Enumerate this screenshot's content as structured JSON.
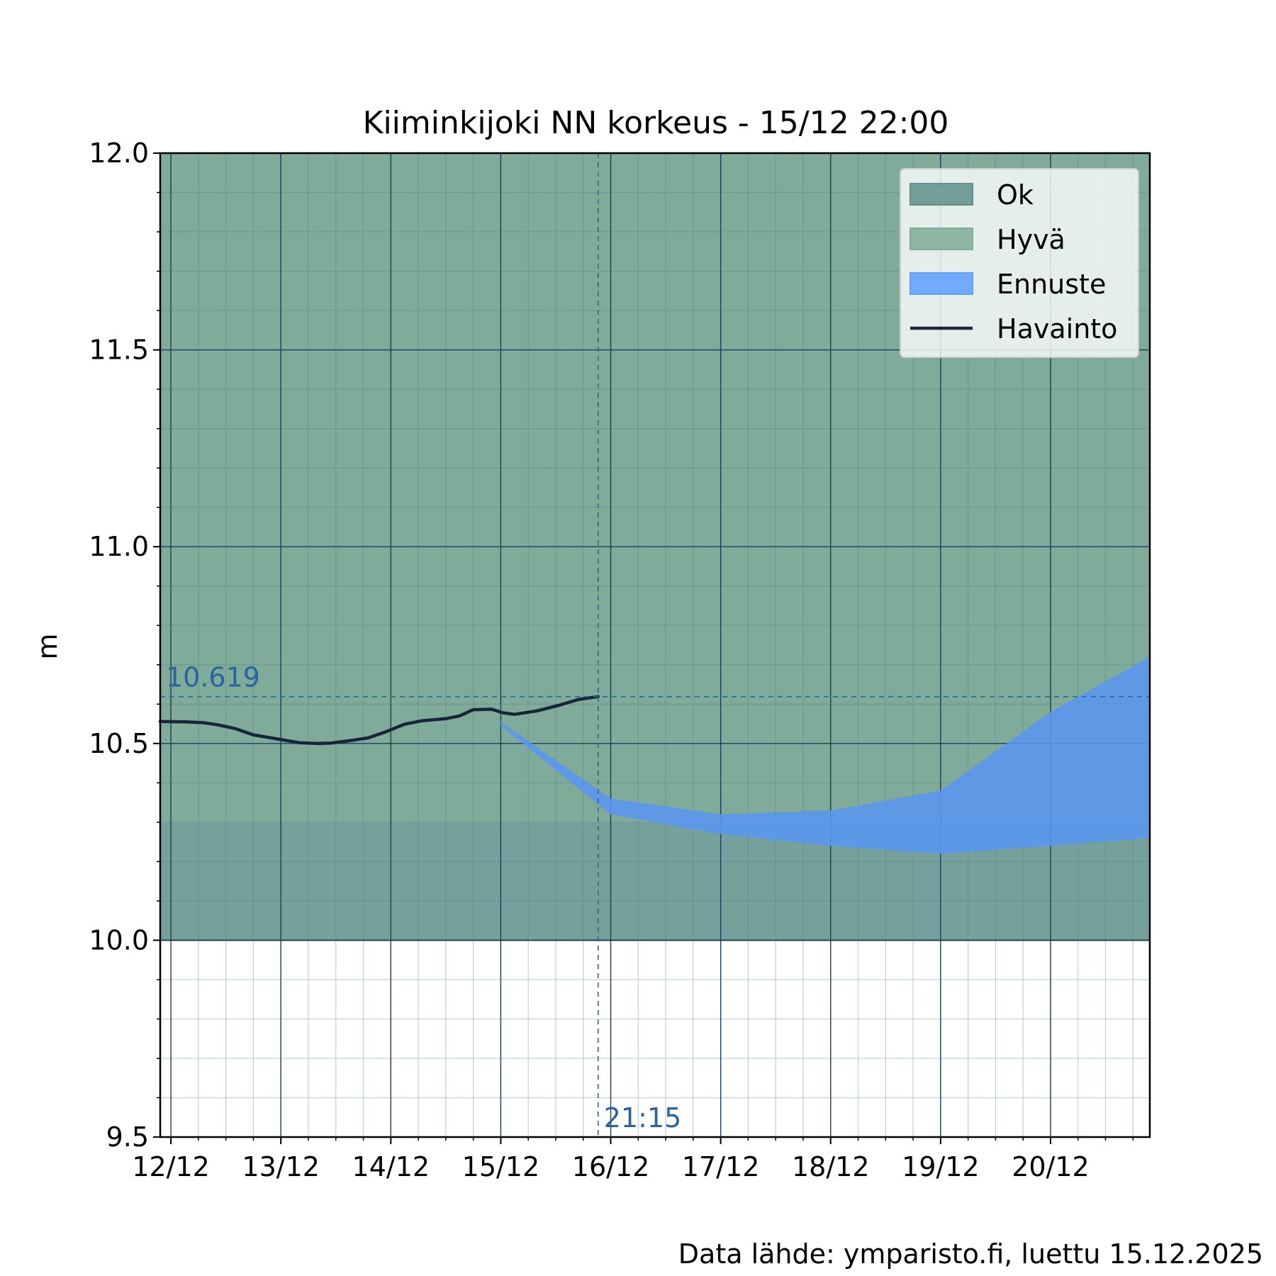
{
  "chart_data": {
    "type": "area",
    "title": "Kiiminkijoki NN korkeus  -  15/12 22:00",
    "ylabel": "m",
    "xlabel": "",
    "ylim": [
      9.5,
      12.0
    ],
    "x_range_days": [
      "2025-12-11T21:40",
      "2025-12-20T21:40"
    ],
    "y_ticks": [
      "9.5",
      "10.0",
      "10.5",
      "11.0",
      "11.5",
      "12.0"
    ],
    "y_tick_values": [
      9.5,
      10.0,
      10.5,
      11.0,
      11.5,
      12.0
    ],
    "x_ticks": [
      "12/12",
      "13/12",
      "14/12",
      "15/12",
      "16/12",
      "17/12",
      "18/12",
      "19/12",
      "20/12"
    ],
    "x_tick_values": [
      "2025-12-12T00:00",
      "2025-12-13T00:00",
      "2025-12-14T00:00",
      "2025-12-15T00:00",
      "2025-12-16T00:00",
      "2025-12-17T00:00",
      "2025-12-18T00:00",
      "2025-12-19T00:00",
      "2025-12-20T00:00"
    ],
    "grid": true,
    "legend_position": "top-right",
    "legend": [
      {
        "label": "Ok",
        "color": "#5f8f8c"
      },
      {
        "label": "Hyvä",
        "color": "#7fab98"
      },
      {
        "label": "Ennuste",
        "color": "#5e9eff"
      },
      {
        "label": "Havainto",
        "color": "#1a2a3c"
      }
    ],
    "zones": [
      {
        "name": "Ok",
        "y_from": 10.0,
        "y_to": 10.3,
        "color": "#76a09c"
      },
      {
        "name": "Hyvä",
        "y_from": 10.3,
        "y_to": 12.0,
        "color": "#80aa9a"
      }
    ],
    "observation": {
      "name": "Havainto",
      "color": "#162538",
      "x": [
        "2025-12-11T21:40",
        "2025-12-12T03:00",
        "2025-12-12T07:00",
        "2025-12-12T10:00",
        "2025-12-12T14:00",
        "2025-12-12T18:00",
        "2025-12-12T23:00",
        "2025-12-13T04:00",
        "2025-12-13T08:00",
        "2025-12-13T11:00",
        "2025-12-13T15:00",
        "2025-12-13T19:00",
        "2025-12-13T23:00",
        "2025-12-14T03:00",
        "2025-12-14T07:00",
        "2025-12-14T12:00",
        "2025-12-14T15:00",
        "2025-12-14T18:00",
        "2025-12-14T22:00",
        "2025-12-15T00:30",
        "2025-12-15T03:00",
        "2025-12-15T08:00",
        "2025-12-15T13:00",
        "2025-12-15T17:00",
        "2025-12-15T21:15"
      ],
      "y": [
        10.556,
        10.555,
        10.553,
        10.548,
        10.538,
        10.522,
        10.512,
        10.502,
        10.5,
        10.501,
        10.507,
        10.514,
        10.53,
        10.549,
        10.558,
        10.563,
        10.57,
        10.586,
        10.587,
        10.578,
        10.574,
        10.583,
        10.598,
        10.612,
        10.619
      ]
    },
    "forecast": {
      "name": "Ennuste",
      "color": "#5a96f0",
      "x": [
        "2025-12-15T00:00",
        "2025-12-16T00:00",
        "2025-12-17T00:00",
        "2025-12-18T00:00",
        "2025-12-19T00:00",
        "2025-12-20T00:00",
        "2025-12-20T21:40"
      ],
      "upper": [
        10.555,
        10.36,
        10.32,
        10.33,
        10.38,
        10.58,
        10.72
      ],
      "lower": [
        10.545,
        10.32,
        10.27,
        10.24,
        10.22,
        10.24,
        10.26
      ]
    },
    "annotations": [
      {
        "text": "10.619",
        "y": 10.619,
        "kind": "horizontal-dashed",
        "color": "#2a64a0"
      },
      {
        "text": "21:15",
        "x": "2025-12-15T21:15",
        "kind": "vertical-dashed",
        "color": "#2a64a0"
      }
    ],
    "source_note": "Data lähde: ymparisto.fi, luettu 15.12.2025"
  }
}
